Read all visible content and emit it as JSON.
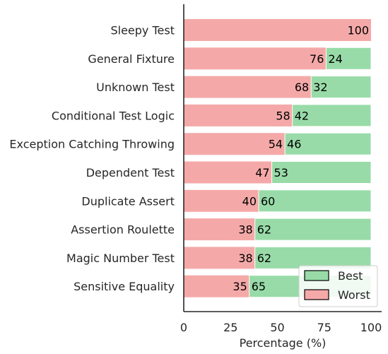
{
  "chart_data": {
    "type": "bar",
    "orientation": "horizontal",
    "stacked": true,
    "categories": [
      "Sleepy Test",
      "General Fixture",
      "Unknown Test",
      "Conditional Test Logic",
      "Exception Catching Throwing",
      "Dependent Test",
      "Duplicate Assert",
      "Assertion Roulette",
      "Magic Number Test",
      "Sensitive Equality"
    ],
    "series": [
      {
        "name": "Worst",
        "color": "#f4a9a8",
        "values": [
          100,
          76,
          68,
          58,
          54,
          47,
          40,
          38,
          38,
          35
        ]
      },
      {
        "name": "Best",
        "color": "#98dba8",
        "values": [
          0,
          24,
          32,
          42,
          46,
          53,
          60,
          62,
          62,
          65
        ]
      }
    ],
    "xlabel": "Percentage (%)",
    "ylabel": "",
    "xlim": [
      0,
      100
    ],
    "xticks": [
      0,
      25,
      50,
      75,
      100
    ],
    "grid": false,
    "legend": {
      "placement": "bottom-right",
      "entries": [
        {
          "label": "Best",
          "color": "#98dba8"
        },
        {
          "label": "Worst",
          "color": "#f4a9a8"
        }
      ]
    }
  }
}
